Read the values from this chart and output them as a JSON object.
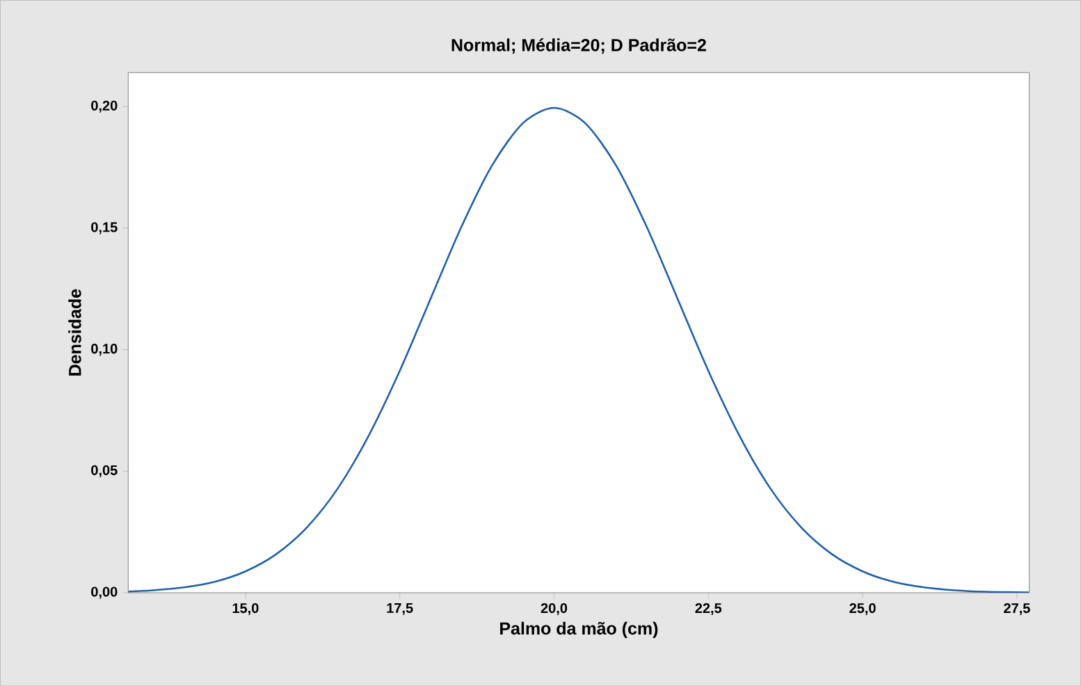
{
  "chart_data": {
    "type": "line",
    "title": "Normal; Média=20; D Padrão=2",
    "xlabel": "Palmo da mão (cm)",
    "ylabel": "Densidade",
    "x": [
      13.1,
      13.5,
      14,
      14.5,
      15,
      15.5,
      16,
      16.5,
      17,
      17.5,
      18,
      18.5,
      19,
      19.5,
      20,
      20.5,
      21,
      21.5,
      22,
      22.5,
      23,
      23.5,
      24,
      24.5,
      25,
      25.5,
      26,
      26.5,
      27,
      27.5,
      27.7
    ],
    "series": [
      {
        "color": "#1f5fa8",
        "values": [
          0.0005,
          0.001,
          0.0022,
          0.0045,
          0.0088,
          0.0159,
          0.027,
          0.0431,
          0.0648,
          0.0913,
          0.121,
          0.1506,
          0.176,
          0.1933,
          0.1995,
          0.1933,
          0.176,
          0.1506,
          0.121,
          0.0913,
          0.0648,
          0.0431,
          0.027,
          0.0159,
          0.0088,
          0.0045,
          0.0022,
          0.001,
          0.0004,
          0.0002,
          0.0001
        ]
      }
    ],
    "xlim": [
      13.1,
      27.7
    ],
    "ylim": [
      0,
      0.214
    ],
    "xticks": [
      {
        "value": 15,
        "label": "15,0"
      },
      {
        "value": 17.5,
        "label": "17,5"
      },
      {
        "value": 20,
        "label": "20,0"
      },
      {
        "value": 22.5,
        "label": "22,5"
      },
      {
        "value": 25,
        "label": "25,0"
      },
      {
        "value": 27.5,
        "label": "27,5"
      }
    ],
    "yticks": [
      {
        "value": 0,
        "label": "0,00"
      },
      {
        "value": 0.05,
        "label": "0,05"
      },
      {
        "value": 0.1,
        "label": "0,10"
      },
      {
        "value": 0.15,
        "label": "0,15"
      },
      {
        "value": 0.2,
        "label": "0,20"
      }
    ],
    "grid": false,
    "marker": "none",
    "line_style": "solid"
  }
}
